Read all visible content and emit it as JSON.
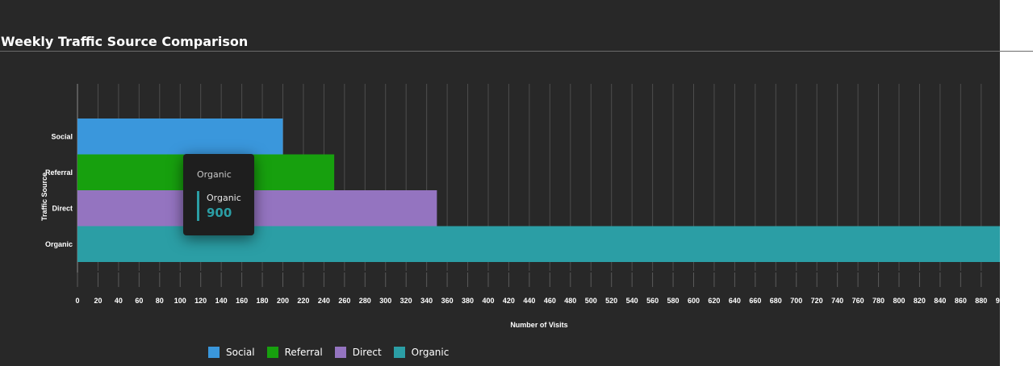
{
  "title": "Weekly Traffic Source Comparison",
  "chart_data": {
    "type": "bar",
    "orientation": "horizontal",
    "categories": [
      "Social",
      "Referral",
      "Direct",
      "Organic"
    ],
    "values": [
      200,
      250,
      350,
      900
    ],
    "colors": [
      "#3a97dc",
      "#17a00e",
      "#9474c0",
      "#2b9ea5"
    ],
    "xlabel": "Number of Visits",
    "ylabel": "Traffic Source",
    "xlim": [
      0,
      900
    ],
    "x_tick_step": 20,
    "grid": true,
    "legend_position": "bottom"
  },
  "legend": [
    {
      "label": "Social",
      "color": "#3a97dc"
    },
    {
      "label": "Referral",
      "color": "#17a00e"
    },
    {
      "label": "Direct",
      "color": "#9474c0"
    },
    {
      "label": "Organic",
      "color": "#2b9ea5"
    }
  ],
  "tooltip": {
    "header": "Organic",
    "series_name": "Organic",
    "value": "900",
    "color": "#2b9ea5"
  }
}
